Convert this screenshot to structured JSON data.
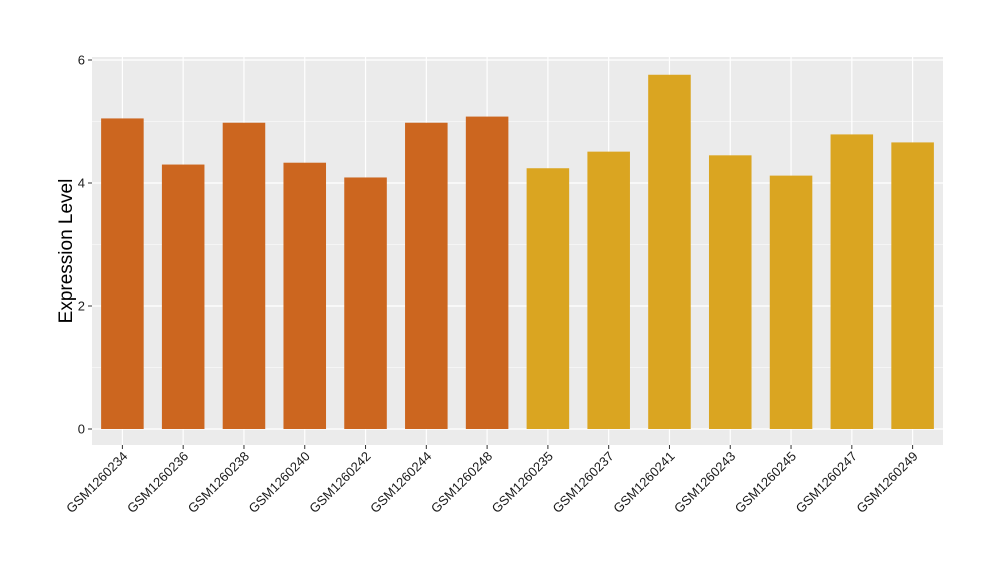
{
  "chart_data": {
    "type": "bar",
    "title": "",
    "xlabel": "",
    "ylabel": "Expression Level",
    "ylim": [
      0,
      6
    ],
    "yticks": [
      0,
      2,
      4,
      6
    ],
    "grid": true,
    "legend": "none",
    "categories": [
      "GSM1260234",
      "GSM1260236",
      "GSM1260238",
      "GSM1260240",
      "GSM1260242",
      "GSM1260244",
      "GSM1260248",
      "GSM1260235",
      "GSM1260237",
      "GSM1260241",
      "GSM1260243",
      "GSM1260245",
      "GSM1260247",
      "GSM1260249"
    ],
    "values": [
      5.05,
      4.3,
      4.98,
      4.33,
      4.09,
      4.98,
      5.08,
      4.24,
      4.51,
      5.76,
      4.45,
      4.12,
      4.79,
      4.66
    ],
    "group": [
      0,
      0,
      0,
      0,
      0,
      0,
      0,
      1,
      1,
      1,
      1,
      1,
      1,
      1
    ],
    "colors": {
      "group_0": "#CC661F",
      "group_1": "#DAA521",
      "panel_background": "#EBEBEB",
      "grid": "#FFFFFF"
    }
  }
}
